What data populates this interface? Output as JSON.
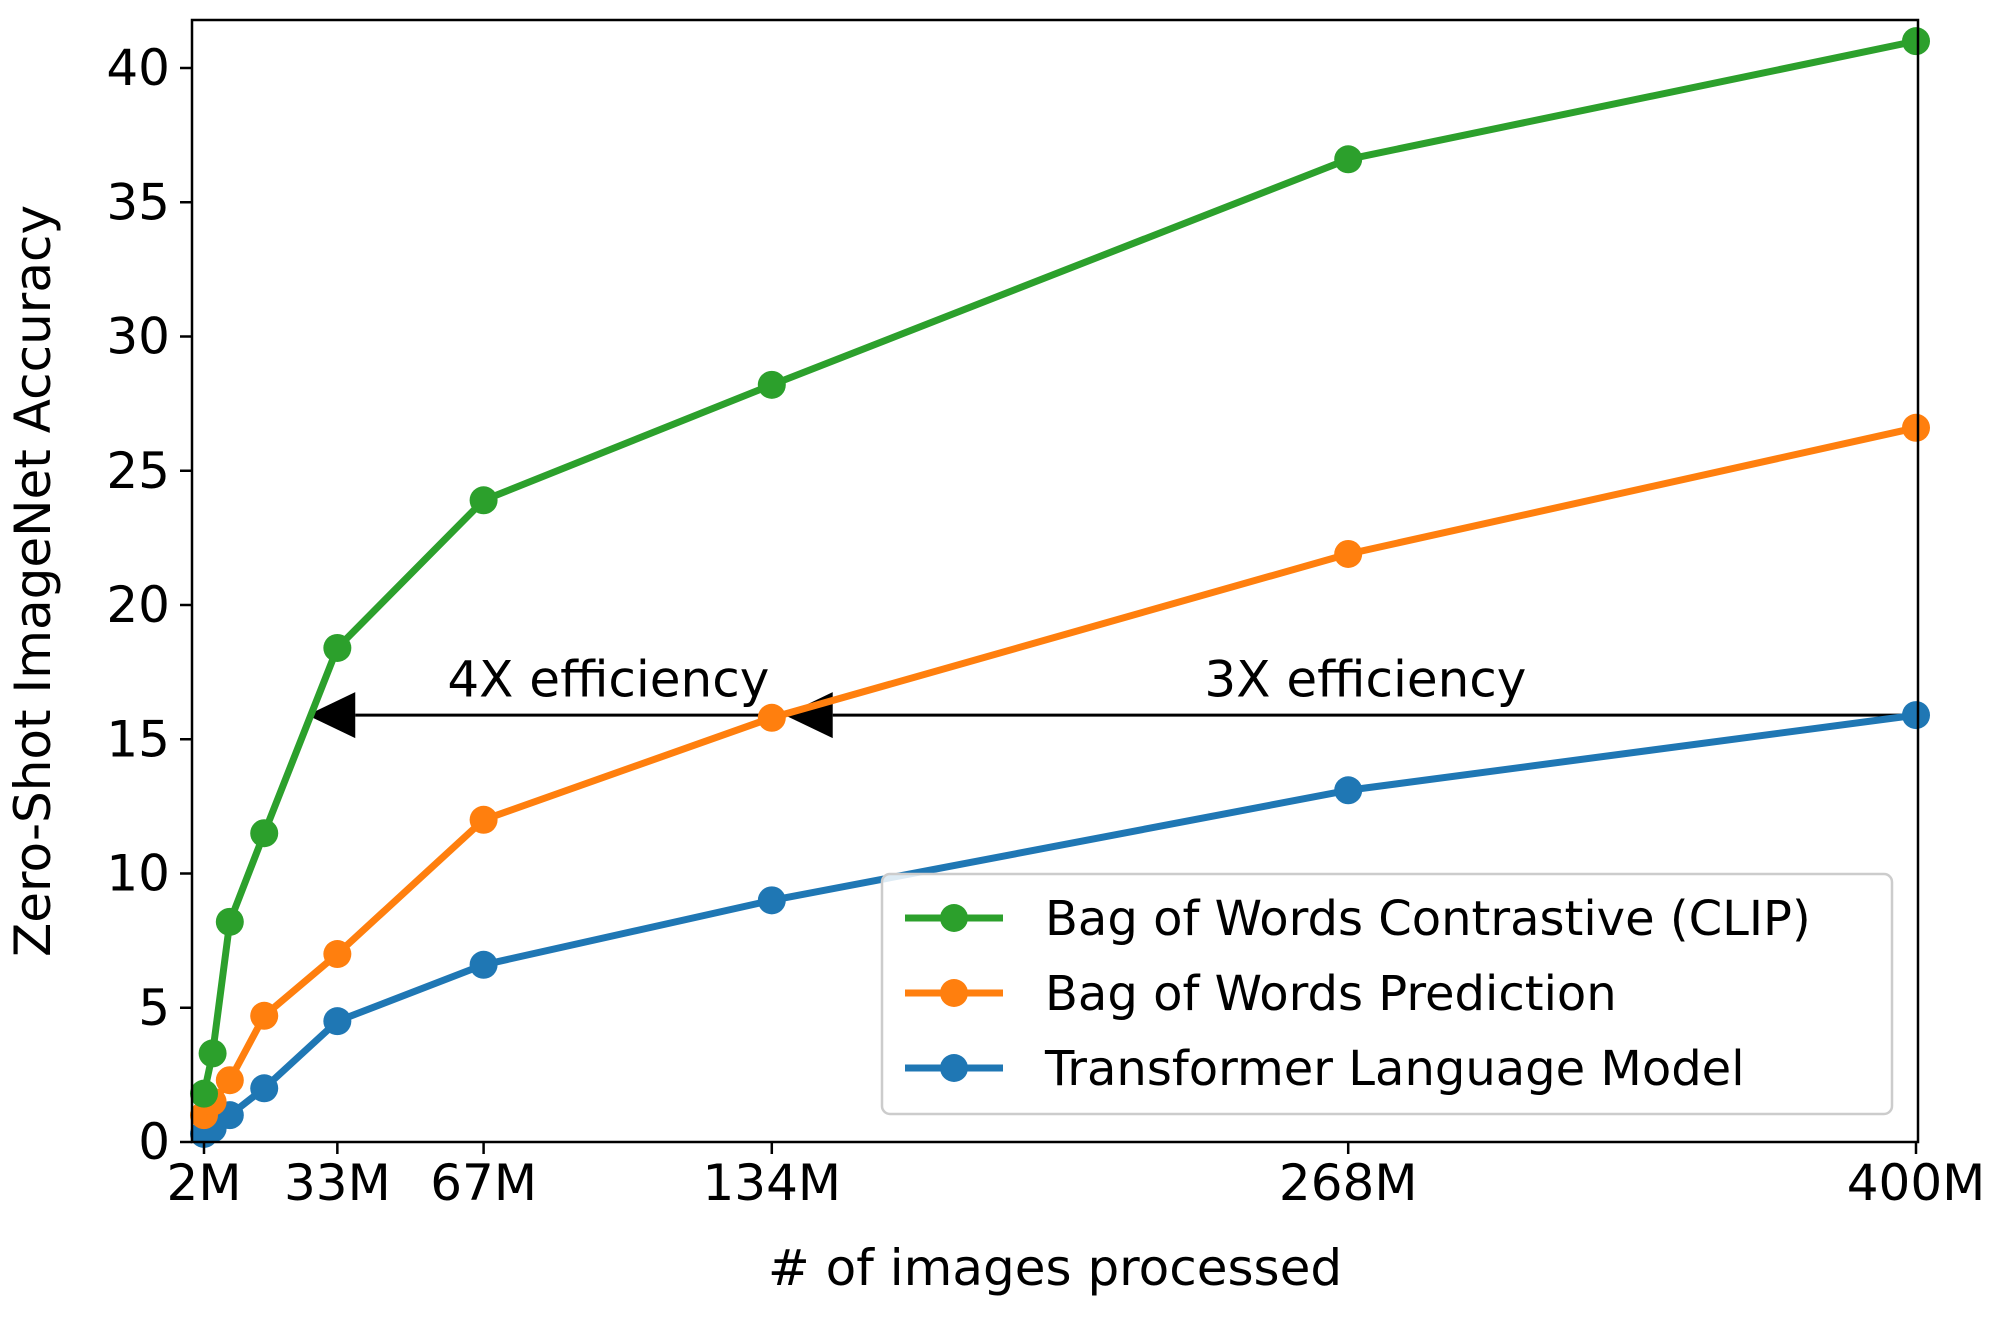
{
  "chart_data": {
    "type": "line",
    "xlabel": "# of images processed",
    "ylabel": "Zero-Shot ImageNet Accuracy",
    "xlim": [
      0,
      400
    ],
    "ylim": [
      0,
      42
    ],
    "x_ticks": [
      {
        "value": 2,
        "label": "2M"
      },
      {
        "value": 33,
        "label": "33M"
      },
      {
        "value": 67,
        "label": "67M"
      },
      {
        "value": 134,
        "label": "134M"
      },
      {
        "value": 268,
        "label": "268M"
      },
      {
        "value": 400,
        "label": "400M"
      }
    ],
    "y_ticks": [
      {
        "value": 0,
        "label": "0"
      },
      {
        "value": 5,
        "label": "5"
      },
      {
        "value": 10,
        "label": "10"
      },
      {
        "value": 15,
        "label": "15"
      },
      {
        "value": 20,
        "label": "20"
      },
      {
        "value": 25,
        "label": "25"
      },
      {
        "value": 30,
        "label": "30"
      },
      {
        "value": 35,
        "label": "35"
      },
      {
        "value": 40,
        "label": "40"
      }
    ],
    "grid": false,
    "legend_position": "lower-right",
    "series": [
      {
        "name": "Bag of Words Contrastive (CLIP)",
        "color": "#2ca02c",
        "points": [
          [
            2,
            1.8
          ],
          [
            4,
            3.3
          ],
          [
            8,
            8.2
          ],
          [
            16,
            11.5
          ],
          [
            33,
            18.4
          ],
          [
            67,
            23.9
          ],
          [
            134,
            28.2
          ],
          [
            268,
            36.6
          ],
          [
            400,
            41.0
          ]
        ]
      },
      {
        "name": "Bag of Words Prediction",
        "color": "#ff7f0e",
        "points": [
          [
            2,
            1.0
          ],
          [
            4,
            1.5
          ],
          [
            8,
            2.3
          ],
          [
            16,
            4.7
          ],
          [
            33,
            7.0
          ],
          [
            67,
            12.0
          ],
          [
            134,
            15.8
          ],
          [
            268,
            21.9
          ],
          [
            400,
            26.6
          ]
        ]
      },
      {
        "name": "Transformer Language Model",
        "color": "#1f77b4",
        "points": [
          [
            2,
            0.3
          ],
          [
            4,
            0.5
          ],
          [
            8,
            1.0
          ],
          [
            16,
            2.0
          ],
          [
            33,
            4.5
          ],
          [
            67,
            6.6
          ],
          [
            134,
            9.0
          ],
          [
            268,
            13.1
          ],
          [
            400,
            15.9
          ]
        ]
      }
    ],
    "annotations": [
      {
        "text": "4X efficiency",
        "x": 96,
        "y": 16.6,
        "arrow_from": 134,
        "arrow_to": 26,
        "arrow_y": 15.9
      },
      {
        "text": "3X efficiency",
        "x": 272,
        "y": 16.6,
        "arrow_from": 400,
        "arrow_to": 137,
        "arrow_y": 15.9
      }
    ]
  }
}
